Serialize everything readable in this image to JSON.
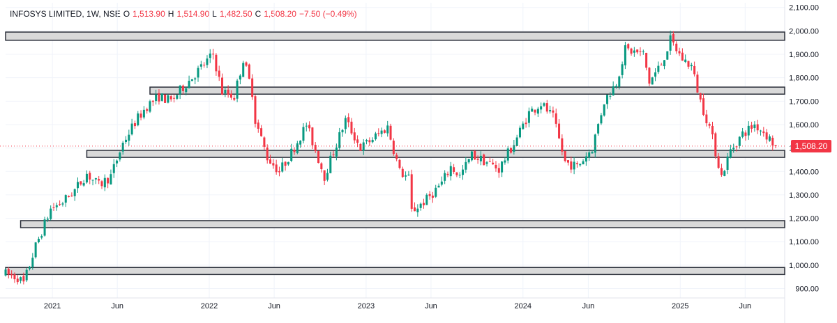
{
  "legend": {
    "symbol": "INFOSYS LIMITED, 1W, NSE",
    "open_label": "O",
    "open_value": "1,513.90",
    "high_label": "H",
    "high_value": "1,514.90",
    "low_label": "L",
    "low_value": "1,482.50",
    "close_label": "C",
    "close_value": "1,508.20",
    "change": "−7.50 (−0.49%)"
  },
  "last_price_label": "1,508.20",
  "colors": {
    "up": "#089981",
    "down": "#f23645",
    "zone_fill": "#d9d9d9",
    "zone_stroke": "#2a2e39",
    "grid": "#f0f3fa"
  },
  "chart_data": {
    "type": "candlestick",
    "interval": "1W",
    "last_price": 1508.2,
    "ylim": [
      860,
      2120
    ],
    "y_ticks": [
      900,
      1000,
      1100,
      1200,
      1300,
      1400,
      1500,
      1600,
      1700,
      1800,
      1900,
      2000,
      2100
    ],
    "y_tick_labels": [
      "900.00",
      "1,000.00",
      "1,100.00",
      "1,200.00",
      "1,300.00",
      "1,400.00",
      "1,500.00",
      "1,600.00",
      "1,700.00",
      "1,800.00",
      "1,900.00",
      "2,000.00",
      "2,100.00"
    ],
    "x_range": [
      "2020-09-14",
      "2025-09-01"
    ],
    "x_ticks": [
      {
        "date": "2021-01-01",
        "label": "2021"
      },
      {
        "date": "2021-06-01",
        "label": "Jun"
      },
      {
        "date": "2022-01-01",
        "label": "2022"
      },
      {
        "date": "2022-06-01",
        "label": "Jun"
      },
      {
        "date": "2023-01-01",
        "label": "2023"
      },
      {
        "date": "2023-06-01",
        "label": "Jun"
      },
      {
        "date": "2024-01-01",
        "label": "2024"
      },
      {
        "date": "2024-06-01",
        "label": "Jun"
      },
      {
        "date": "2025-01-01",
        "label": "2025"
      },
      {
        "date": "2025-06-01",
        "label": "Jun"
      }
    ],
    "zones": [
      {
        "start": "2020-09-14",
        "end": "2025-09-01",
        "low": 1960,
        "high": 1995
      },
      {
        "start": "2021-08-16",
        "end": "2025-09-01",
        "low": 1730,
        "high": 1760
      },
      {
        "start": "2021-03-22",
        "end": "2025-09-01",
        "low": 1460,
        "high": 1490
      },
      {
        "start": "2020-10-19",
        "end": "2025-09-01",
        "low": 1160,
        "high": 1190
      },
      {
        "start": "2020-09-14",
        "end": "2025-09-01",
        "low": 960,
        "high": 990
      }
    ],
    "ohlc_path": [
      [
        "2020-09-14",
        962
      ],
      [
        "2020-10-12",
        948
      ],
      [
        "2020-10-26",
        922
      ],
      [
        "2020-11-23",
        1080
      ],
      [
        "2020-12-28",
        1240
      ],
      [
        "2021-01-25",
        1270
      ],
      [
        "2021-02-22",
        1320
      ],
      [
        "2021-03-22",
        1390
      ],
      [
        "2021-04-19",
        1340
      ],
      [
        "2021-05-17",
        1380
      ],
      [
        "2021-06-14",
        1520
      ],
      [
        "2021-07-12",
        1610
      ],
      [
        "2021-08-09",
        1680
      ],
      [
        "2021-09-06",
        1720
      ],
      [
        "2021-10-04",
        1700
      ],
      [
        "2021-11-01",
        1760
      ],
      [
        "2021-12-06",
        1830
      ],
      [
        "2022-01-10",
        1900
      ],
      [
        "2022-01-31",
        1740
      ],
      [
        "2022-02-28",
        1720
      ],
      [
        "2022-03-21",
        1880
      ],
      [
        "2022-04-11",
        1740
      ],
      [
        "2022-04-18",
        1620
      ],
      [
        "2022-05-16",
        1460
      ],
      [
        "2022-06-13",
        1400
      ],
      [
        "2022-07-11",
        1480
      ],
      [
        "2022-08-15",
        1600
      ],
      [
        "2022-09-26",
        1380
      ],
      [
        "2022-11-14",
        1620
      ],
      [
        "2022-12-19",
        1500
      ],
      [
        "2023-01-16",
        1540
      ],
      [
        "2023-02-20",
        1590
      ],
      [
        "2023-03-20",
        1400
      ],
      [
        "2023-04-10",
        1370
      ],
      [
        "2023-04-17",
        1230
      ],
      [
        "2023-05-22",
        1280
      ],
      [
        "2023-06-26",
        1350
      ],
      [
        "2023-07-17",
        1420
      ],
      [
        "2023-08-07",
        1380
      ],
      [
        "2023-09-04",
        1470
      ],
      [
        "2023-10-09",
        1440
      ],
      [
        "2023-11-06",
        1410
      ],
      [
        "2023-12-11",
        1520
      ],
      [
        "2024-01-15",
        1650
      ],
      [
        "2024-02-12",
        1690
      ],
      [
        "2024-03-11",
        1630
      ],
      [
        "2024-04-08",
        1440
      ],
      [
        "2024-05-06",
        1420
      ],
      [
        "2024-06-10",
        1500
      ],
      [
        "2024-07-08",
        1700
      ],
      [
        "2024-08-05",
        1780
      ],
      [
        "2024-08-26",
        1920
      ],
      [
        "2024-10-07",
        1900
      ],
      [
        "2024-10-21",
        1780
      ],
      [
        "2024-11-18",
        1860
      ],
      [
        "2024-12-09",
        1960
      ],
      [
        "2025-01-06",
        1880
      ],
      [
        "2025-01-27",
        1850
      ],
      [
        "2025-02-17",
        1700
      ],
      [
        "2025-03-10",
        1590
      ],
      [
        "2025-04-07",
        1380
      ],
      [
        "2025-04-28",
        1490
      ],
      [
        "2025-05-26",
        1560
      ],
      [
        "2025-06-23",
        1600
      ],
      [
        "2025-07-14",
        1570
      ],
      [
        "2025-08-11",
        1508
      ]
    ]
  }
}
